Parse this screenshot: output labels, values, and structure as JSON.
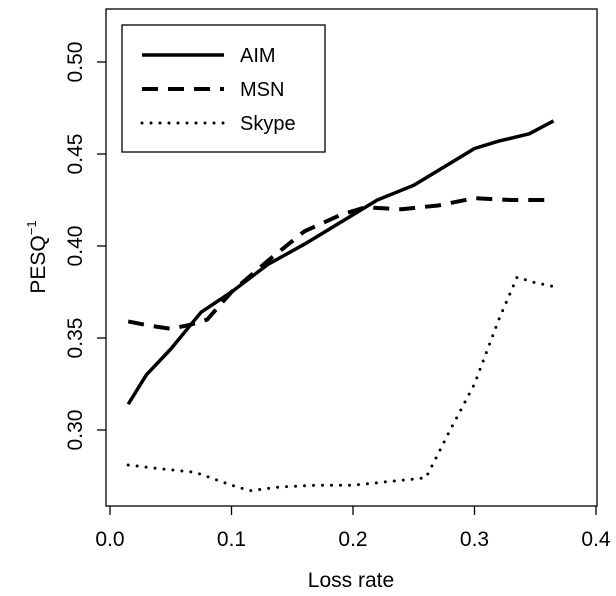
{
  "chart_data": {
    "type": "line",
    "title": "",
    "xlabel": "Loss rate",
    "ylabel_base": "PESQ",
    "ylabel_sup": "−1",
    "xlim": [
      0.0,
      0.4
    ],
    "ylim": [
      0.27,
      0.52
    ],
    "x_ticks": [
      0.0,
      0.1,
      0.2,
      0.3,
      0.4
    ],
    "x_tick_labels": [
      "0.0",
      "0.1",
      "0.2",
      "0.3",
      "0.4"
    ],
    "y_ticks": [
      0.3,
      0.35,
      0.4,
      0.45,
      0.5
    ],
    "y_tick_labels": [
      "0.30",
      "0.35",
      "0.40",
      "0.45",
      "0.50"
    ],
    "grid": false,
    "legend_position": "top-left",
    "series": [
      {
        "name": "AIM",
        "style": "solid",
        "x": [
          0.015,
          0.03,
          0.05,
          0.075,
          0.1,
          0.13,
          0.16,
          0.19,
          0.22,
          0.25,
          0.28,
          0.3,
          0.32,
          0.345,
          0.365
        ],
        "y": [
          0.314,
          0.33,
          0.344,
          0.364,
          0.375,
          0.39,
          0.401,
          0.413,
          0.425,
          0.433,
          0.445,
          0.453,
          0.457,
          0.461,
          0.468
        ]
      },
      {
        "name": "MSN",
        "style": "dashed",
        "x": [
          0.015,
          0.03,
          0.05,
          0.065,
          0.08,
          0.1,
          0.13,
          0.16,
          0.19,
          0.21,
          0.24,
          0.27,
          0.3,
          0.33,
          0.365
        ],
        "y": [
          0.359,
          0.357,
          0.355,
          0.357,
          0.36,
          0.375,
          0.392,
          0.408,
          0.417,
          0.421,
          0.42,
          0.422,
          0.426,
          0.425,
          0.425
        ]
      },
      {
        "name": "Skype",
        "style": "dotted",
        "x": [
          0.015,
          0.04,
          0.07,
          0.1,
          0.115,
          0.14,
          0.17,
          0.2,
          0.23,
          0.26,
          0.28,
          0.3,
          0.32,
          0.335,
          0.35,
          0.365
        ],
        "y": [
          0.281,
          0.279,
          0.277,
          0.27,
          0.267,
          0.269,
          0.27,
          0.27,
          0.272,
          0.274,
          0.3,
          0.325,
          0.36,
          0.383,
          0.38,
          0.378
        ]
      }
    ]
  }
}
